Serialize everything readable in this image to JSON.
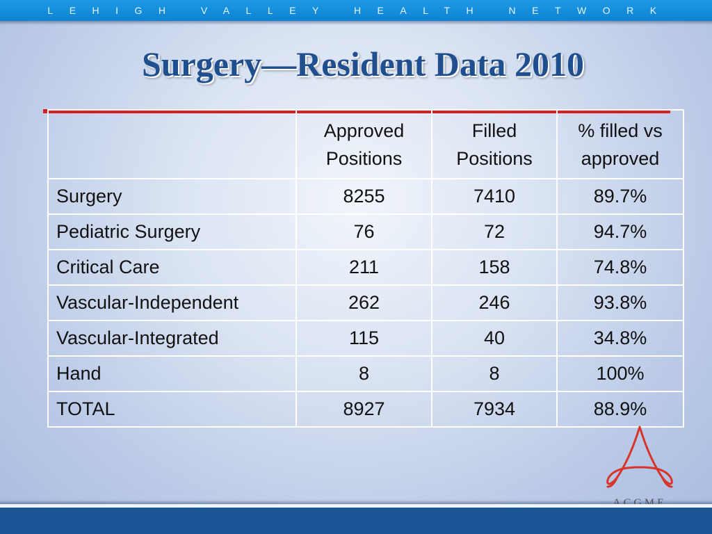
{
  "banner": {
    "text": "LEHIGH VALLEY HEALTH NETWORK"
  },
  "title": "Surgery—Resident Data 2010",
  "table": {
    "headers": [
      "",
      "Approved\nPositions",
      "Filled\nPositions",
      "% filled vs\napproved"
    ],
    "rows": [
      {
        "label": "Surgery",
        "approved": "8255",
        "filled": "7410",
        "pct": "89.7%"
      },
      {
        "label": "Pediatric Surgery",
        "approved": "76",
        "filled": "72",
        "pct": "94.7%"
      },
      {
        "label": "Critical Care",
        "approved": "211",
        "filled": "158",
        "pct": "74.8%"
      },
      {
        "label": "Vascular-Independent",
        "approved": "262",
        "filled": "246",
        "pct": "93.8%"
      },
      {
        "label": "Vascular-Integrated",
        "approved": "115",
        "filled": "40",
        "pct": "34.8%"
      },
      {
        "label": "Hand",
        "approved": "8",
        "filled": "8",
        "pct": "100%"
      },
      {
        "label": "TOTAL",
        "approved": "8927",
        "filled": "7934",
        "pct": "88.9%"
      }
    ]
  },
  "logo": {
    "text": "ACGME"
  },
  "colors": {
    "banner": "#1d9ae6",
    "title": "#1f4f8f",
    "rule": "#d42020",
    "bottom_bar": "#1c5596",
    "logo_red": "#d9342b"
  }
}
